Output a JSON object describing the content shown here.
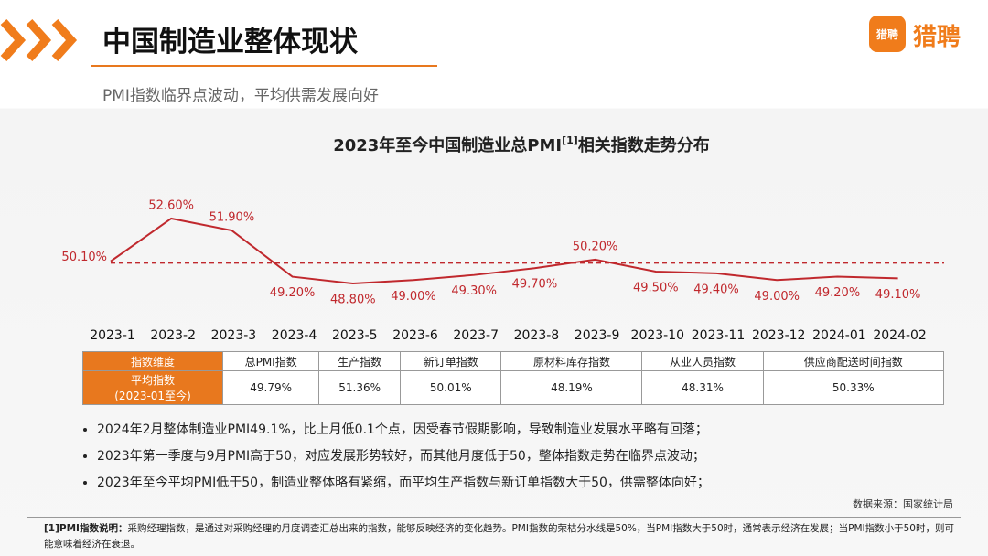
{
  "header": {
    "title": "中国制造业整体现状",
    "subtitle": "PMI指数临界点波动，平均供需发展向好",
    "logo_icon": "猎聘",
    "logo": "猎聘"
  },
  "chart_data": {
    "type": "line",
    "title": "2023年至今中国制造业总PMI",
    "title_sup": "[1]",
    "title_suffix": "相关指数走势分布",
    "categories": [
      "2023-1",
      "2023-2",
      "2023-3",
      "2023-4",
      "2023-5",
      "2023-6",
      "2023-7",
      "2023-8",
      "2023-9",
      "2023-10",
      "2023-11",
      "2023-12",
      "2024-01",
      "2024-02"
    ],
    "values": [
      50.1,
      52.6,
      51.9,
      49.2,
      48.8,
      49.0,
      49.3,
      49.7,
      50.2,
      49.5,
      49.4,
      49.0,
      49.2,
      49.1
    ],
    "value_labels": [
      "50.10%",
      "52.60%",
      "51.90%",
      "49.20%",
      "48.80%",
      "49.00%",
      "49.30%",
      "49.70%",
      "50.20%",
      "49.50%",
      "49.40%",
      "49.00%",
      "49.20%",
      "49.10%"
    ],
    "reference_line": 50,
    "color": "#c0282d",
    "label_color": "#c0282d",
    "ylim": [
      48,
      53
    ]
  },
  "table": {
    "header": [
      "指数维度",
      "总PMI指数",
      "生产指数",
      "新订单指数",
      "原材料库存指数",
      "从业人员指数",
      "供应商配送时间指数"
    ],
    "row_label": [
      "平均指数",
      "(2023-01至今)"
    ],
    "values": [
      "49.79%",
      "51.36%",
      "50.01%",
      "48.19%",
      "48.31%",
      "50.33%"
    ]
  },
  "bullets": [
    "2024年2月整体制造业PMI49.1%，比上月低0.1个点，因受春节假期影响，导致制造业发展水平略有回落；",
    "2023年第一季度与9月PMI高于50，对应发展形势较好，而其他月度低于50，整体指数走势在临界点波动；",
    "2023年至今平均PMI低于50，制造业整体略有紧缩，而平均生产指数与新订单指数大于50，供需整体向好；"
  ],
  "source": "数据来源：国家统计局",
  "footnote": {
    "label": "[1]PMI指数说明：",
    "text": "采购经理指数，是通过对采购经理的月度调查汇总出来的指数，能够反映经济的变化趋势。PMI指数的荣枯分水线是50%，当PMI指数大于50时，通常表示经济在发展；当PMI指数小于50时，则可能意味着经济在衰退。"
  }
}
